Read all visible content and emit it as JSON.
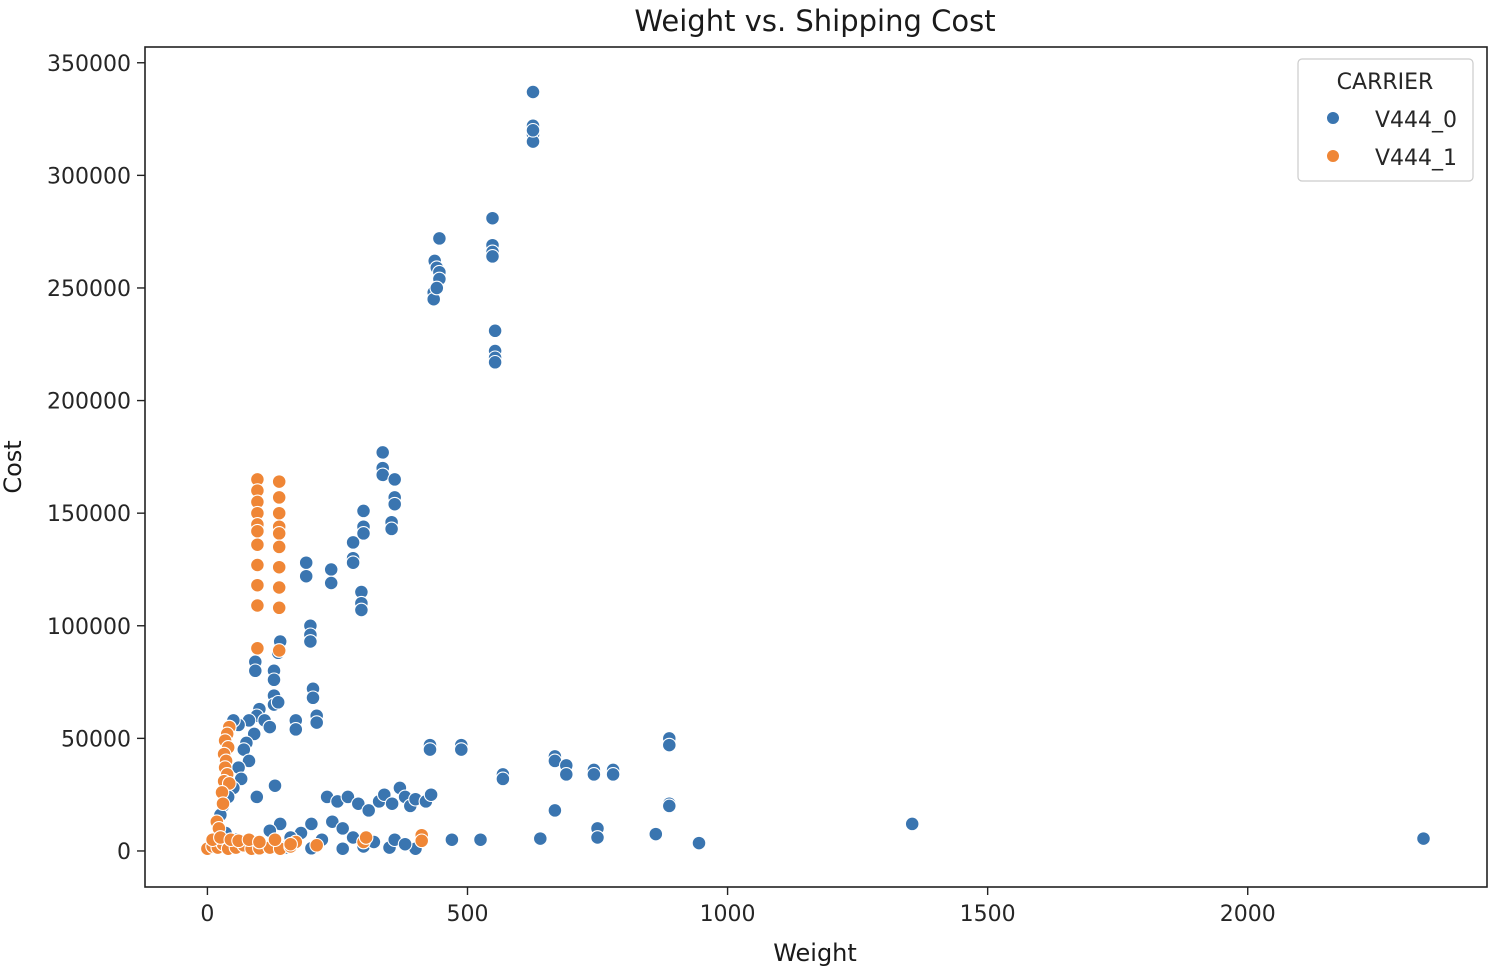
{
  "chart_data": {
    "type": "scatter",
    "title": "Weight vs. Shipping Cost",
    "xlabel": "Weight",
    "ylabel": "Cost",
    "xlim": [
      -120,
      2460
    ],
    "ylim": [
      -16000,
      357000
    ],
    "xticks": [
      0,
      500,
      1000,
      1500,
      2000
    ],
    "yticks": [
      0,
      50000,
      100000,
      150000,
      200000,
      250000,
      300000,
      350000
    ],
    "grid": false,
    "legend": {
      "title": "CARRIER",
      "placement": "top-right"
    },
    "series": [
      {
        "name": "V444_0",
        "color": "#3a75b0",
        "points": [
          [
            626,
            337000
          ],
          [
            626,
            322000
          ],
          [
            626,
            318000
          ],
          [
            626,
            315000
          ],
          [
            626,
            320000
          ],
          [
            446,
            272000
          ],
          [
            437,
            262000
          ],
          [
            441,
            259000
          ],
          [
            446,
            257000
          ],
          [
            446,
            254000
          ],
          [
            435,
            248000
          ],
          [
            435,
            245000
          ],
          [
            441,
            250000
          ],
          [
            548,
            281000
          ],
          [
            548,
            269000
          ],
          [
            548,
            266000
          ],
          [
            548,
            264000
          ],
          [
            553,
            231000
          ],
          [
            553,
            222000
          ],
          [
            553,
            219000
          ],
          [
            553,
            217000
          ],
          [
            337,
            177000
          ],
          [
            337,
            170000
          ],
          [
            337,
            167000
          ],
          [
            360,
            165000
          ],
          [
            360,
            157000
          ],
          [
            360,
            154000
          ],
          [
            354,
            146000
          ],
          [
            354,
            143000
          ],
          [
            300,
            151000
          ],
          [
            300,
            144000
          ],
          [
            300,
            141000
          ],
          [
            280,
            137000
          ],
          [
            280,
            130000
          ],
          [
            280,
            128000
          ],
          [
            190,
            128000
          ],
          [
            190,
            122000
          ],
          [
            238,
            125000
          ],
          [
            238,
            119000
          ],
          [
            296,
            115000
          ],
          [
            296,
            110000
          ],
          [
            296,
            107000
          ],
          [
            198,
            100000
          ],
          [
            198,
            96000
          ],
          [
            198,
            93000
          ],
          [
            140,
            93000
          ],
          [
            136,
            88000
          ],
          [
            92,
            84000
          ],
          [
            92,
            80000
          ],
          [
            128,
            80000
          ],
          [
            128,
            76000
          ],
          [
            203,
            72000
          ],
          [
            203,
            68000
          ],
          [
            210,
            60000
          ],
          [
            210,
            57000
          ],
          [
            170,
            58000
          ],
          [
            170,
            54000
          ],
          [
            128,
            69000
          ],
          [
            128,
            65000
          ],
          [
            136,
            66000
          ],
          [
            100,
            63000
          ],
          [
            95,
            60000
          ],
          [
            80,
            58000
          ],
          [
            60,
            56000
          ],
          [
            50,
            58000
          ],
          [
            42,
            55000
          ],
          [
            110,
            58000
          ],
          [
            120,
            55000
          ],
          [
            90,
            52000
          ],
          [
            75,
            48000
          ],
          [
            70,
            45000
          ],
          [
            80,
            40000
          ],
          [
            60,
            37000
          ],
          [
            65,
            32000
          ],
          [
            50,
            28000
          ],
          [
            40,
            24000
          ],
          [
            30,
            20000
          ],
          [
            25,
            16000
          ],
          [
            20,
            12000
          ],
          [
            35,
            8000
          ],
          [
            55,
            5000
          ],
          [
            70,
            3000
          ],
          [
            100,
            2000
          ],
          [
            150,
            1500
          ],
          [
            200,
            1200
          ],
          [
            260,
            1000
          ],
          [
            300,
            2000
          ],
          [
            350,
            1500
          ],
          [
            400,
            1000
          ],
          [
            130,
            29000
          ],
          [
            95,
            24000
          ],
          [
            230,
            24000
          ],
          [
            250,
            22000
          ],
          [
            270,
            24000
          ],
          [
            290,
            21000
          ],
          [
            310,
            18000
          ],
          [
            330,
            22000
          ],
          [
            340,
            25000
          ],
          [
            355,
            21000
          ],
          [
            370,
            28000
          ],
          [
            380,
            24000
          ],
          [
            390,
            20000
          ],
          [
            400,
            23000
          ],
          [
            420,
            22000
          ],
          [
            430,
            25000
          ],
          [
            240,
            13000
          ],
          [
            260,
            10000
          ],
          [
            200,
            12000
          ],
          [
            180,
            8000
          ],
          [
            140,
            12000
          ],
          [
            120,
            9000
          ],
          [
            160,
            6000
          ],
          [
            220,
            5000
          ],
          [
            280,
            6000
          ],
          [
            320,
            4000
          ],
          [
            360,
            5000
          ],
          [
            380,
            3000
          ],
          [
            428,
            47000
          ],
          [
            428,
            45000
          ],
          [
            488,
            47000
          ],
          [
            488,
            45000
          ],
          [
            568,
            34000
          ],
          [
            568,
            32000
          ],
          [
            668,
            42000
          ],
          [
            668,
            40000
          ],
          [
            690,
            38000
          ],
          [
            690,
            34000
          ],
          [
            743,
            36000
          ],
          [
            743,
            34000
          ],
          [
            780,
            36000
          ],
          [
            780,
            34000
          ],
          [
            888,
            50000
          ],
          [
            888,
            47000
          ],
          [
            668,
            18000
          ],
          [
            888,
            21000
          ],
          [
            888,
            20000
          ],
          [
            750,
            10000
          ],
          [
            750,
            6000
          ],
          [
            862,
            7500
          ],
          [
            470,
            5000
          ],
          [
            525,
            5000
          ],
          [
            640,
            5500
          ],
          [
            945,
            3500
          ],
          [
            1355,
            12000
          ],
          [
            2338,
            5500
          ]
        ]
      },
      {
        "name": "V444_1",
        "color": "#ef8636",
        "points": [
          [
            96,
            165000
          ],
          [
            96,
            160000
          ],
          [
            96,
            155000
          ],
          [
            96,
            150000
          ],
          [
            96,
            145000
          ],
          [
            96,
            142000
          ],
          [
            96,
            136000
          ],
          [
            96,
            127000
          ],
          [
            96,
            118000
          ],
          [
            96,
            109000
          ],
          [
            96,
            90000
          ],
          [
            138,
            164000
          ],
          [
            138,
            157000
          ],
          [
            138,
            150000
          ],
          [
            138,
            144000
          ],
          [
            138,
            141000
          ],
          [
            138,
            135000
          ],
          [
            138,
            126000
          ],
          [
            138,
            117000
          ],
          [
            138,
            108000
          ],
          [
            138,
            89000
          ],
          [
            42,
            55000
          ],
          [
            38,
            52000
          ],
          [
            34,
            49000
          ],
          [
            40,
            46000
          ],
          [
            32,
            43000
          ],
          [
            36,
            40000
          ],
          [
            34,
            37000
          ],
          [
            38,
            34000
          ],
          [
            32,
            31000
          ],
          [
            42,
            30000
          ],
          [
            28,
            26000
          ],
          [
            30,
            21000
          ],
          [
            18,
            13000
          ],
          [
            22,
            10000
          ],
          [
            0,
            1000
          ],
          [
            10,
            2000
          ],
          [
            20,
            1500
          ],
          [
            30,
            3000
          ],
          [
            40,
            1000
          ],
          [
            55,
            1500
          ],
          [
            70,
            2500
          ],
          [
            85,
            1000
          ],
          [
            100,
            1200
          ],
          [
            120,
            1500
          ],
          [
            140,
            1000
          ],
          [
            160,
            2000
          ],
          [
            170,
            4000
          ],
          [
            210,
            2500
          ],
          [
            10,
            5000
          ],
          [
            25,
            6000
          ],
          [
            45,
            5000
          ],
          [
            60,
            4500
          ],
          [
            80,
            5000
          ],
          [
            100,
            4000
          ],
          [
            130,
            5000
          ],
          [
            160,
            3000
          ],
          [
            300,
            4000
          ],
          [
            305,
            6000
          ],
          [
            412,
            7000
          ],
          [
            412,
            4500
          ]
        ]
      }
    ]
  }
}
